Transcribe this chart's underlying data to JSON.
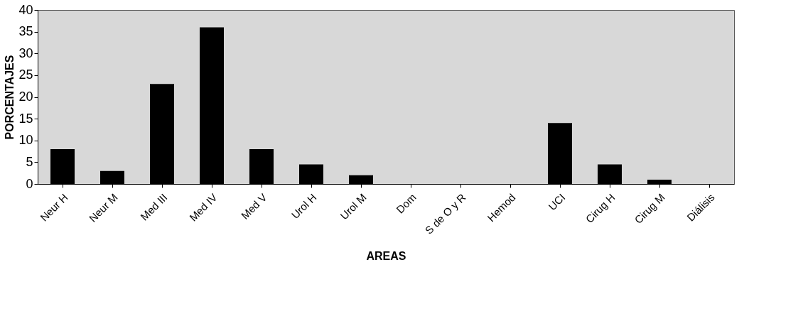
{
  "chart_data": {
    "type": "bar",
    "xlabel": "AREAS",
    "ylabel": "PORCENTAJES",
    "categories": [
      "Neur H",
      "Neur M",
      "Med III",
      "Med IV",
      "Med V",
      "Urol H",
      "Urol M",
      "Dom",
      "S de O y R",
      "Hemod",
      "UCI",
      "Cirug H",
      "Cirug M",
      "Diálisis"
    ],
    "values": [
      8,
      3,
      23,
      36,
      8,
      4.5,
      2,
      0,
      0,
      0,
      14,
      4.5,
      1,
      0
    ],
    "color": "#000000",
    "ylim": [
      0,
      40
    ],
    "yticks": [
      0,
      5,
      10,
      15,
      20,
      25,
      30,
      35,
      40
    ],
    "grid": false
  }
}
